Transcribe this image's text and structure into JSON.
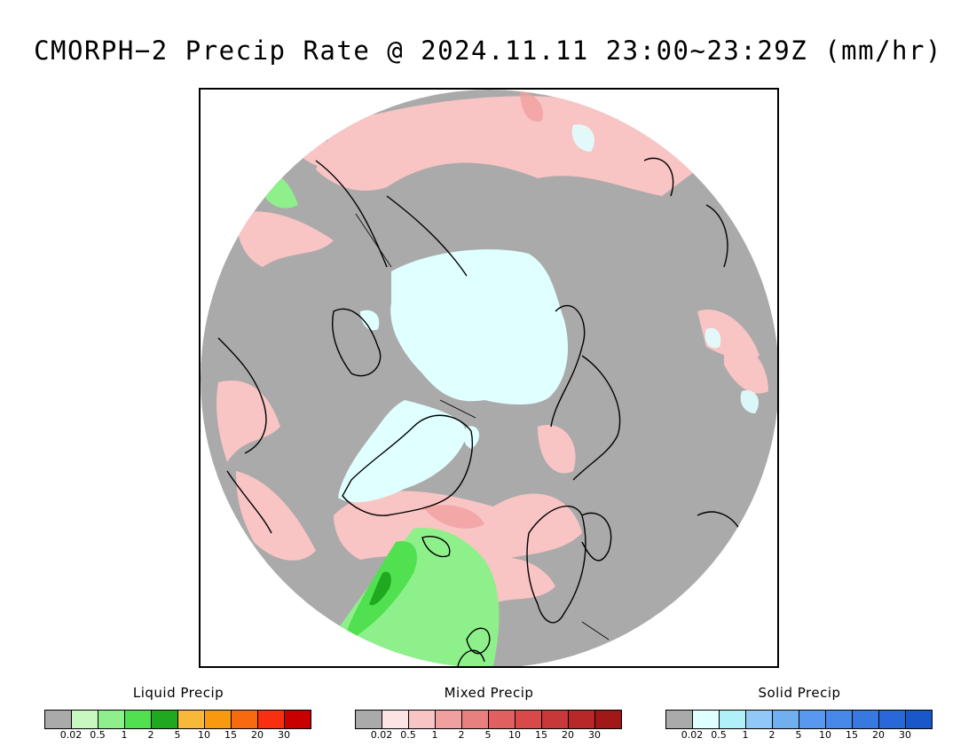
{
  "title": "CMORPH−2 Precip Rate @ 2024.11.11 23:00~23:29Z (mm/hr)",
  "colors": {
    "no_precip": "#aaaaaa",
    "frame": "#000000"
  },
  "legends": [
    {
      "title": "Liquid Precip",
      "colors": [
        "#aaaaaa",
        "#c8f8c0",
        "#8ef08a",
        "#50e050",
        "#20a820",
        "#f8b838",
        "#f89a10",
        "#f86a10",
        "#f83010",
        "#c80000"
      ],
      "ticks": [
        "0.02",
        "0.5",
        "1",
        "2",
        "5",
        "10",
        "15",
        "20",
        "30"
      ]
    },
    {
      "title": "Mixed Precip",
      "colors": [
        "#aaaaaa",
        "#fde4e4",
        "#f9c4c4",
        "#f1a0a0",
        "#e88080",
        "#e06060",
        "#d84a4a",
        "#c83838",
        "#b82828",
        "#a01818"
      ],
      "ticks": [
        "0.02",
        "0.5",
        "1",
        "2",
        "5",
        "10",
        "15",
        "20",
        "30"
      ]
    },
    {
      "title": "Solid Precip",
      "colors": [
        "#aaaaaa",
        "#e0ffff",
        "#b0f0f8",
        "#90c8f8",
        "#70b0f0",
        "#5898f0",
        "#4888e8",
        "#3878e0",
        "#2868d8",
        "#1858c8"
      ],
      "ticks": [
        "0.02",
        "0.5",
        "1",
        "2",
        "5",
        "10",
        "15",
        "20",
        "30"
      ]
    }
  ]
}
